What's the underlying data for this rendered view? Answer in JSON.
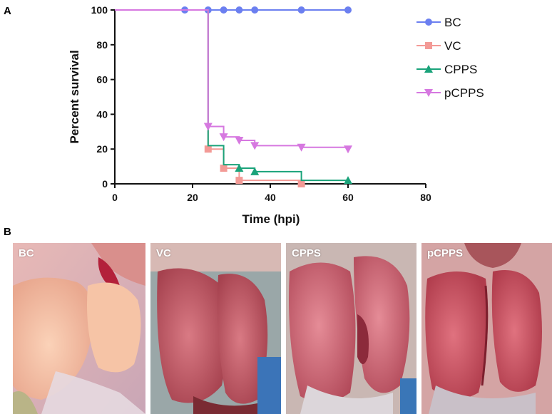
{
  "panels": {
    "a_label": "A",
    "b_label": "B"
  },
  "chart_data": {
    "type": "line",
    "style": "step",
    "xlabel": "Time (hpi)",
    "ylabel": "Percent survival",
    "xlim": [
      0,
      80
    ],
    "ylim": [
      0,
      100
    ],
    "xticks": [
      0,
      20,
      40,
      60,
      80
    ],
    "yticks": [
      0,
      20,
      40,
      60,
      80,
      100
    ],
    "legend_position": "top-right",
    "series": [
      {
        "name": "BC",
        "color": "#6b7ff0",
        "marker": "circle",
        "x": [
          0,
          60
        ],
        "y": [
          100,
          100
        ],
        "marks": [
          [
            18,
            100
          ],
          [
            24,
            100
          ],
          [
            28,
            100
          ],
          [
            32,
            100
          ],
          [
            36,
            100
          ],
          [
            48,
            100
          ],
          [
            60,
            100
          ]
        ]
      },
      {
        "name": "VC",
        "color": "#f39a96",
        "marker": "square",
        "x": [
          0,
          24,
          28,
          32,
          48
        ],
        "y": [
          100,
          20,
          9,
          2,
          0
        ],
        "marks": [
          [
            24,
            20
          ],
          [
            28,
            9
          ],
          [
            32,
            2
          ],
          [
            48,
            0
          ]
        ]
      },
      {
        "name": "CPPS",
        "color": "#1aa37a",
        "marker": "triangle-up",
        "x": [
          0,
          24,
          28,
          32,
          36,
          48,
          60
        ],
        "y": [
          100,
          22,
          11,
          9,
          7,
          2,
          2
        ],
        "marks": [
          [
            32,
            9
          ],
          [
            36,
            7
          ],
          [
            60,
            2
          ]
        ]
      },
      {
        "name": "pCPPS",
        "color": "#d678e0",
        "marker": "triangle-down",
        "x": [
          0,
          24,
          28,
          32,
          36,
          48,
          60
        ],
        "y": [
          100,
          33,
          27,
          25,
          22,
          21,
          20
        ],
        "marks": [
          [
            24,
            33
          ],
          [
            28,
            27
          ],
          [
            32,
            25
          ],
          [
            36,
            22
          ],
          [
            48,
            21
          ],
          [
            60,
            20
          ]
        ]
      }
    ]
  },
  "photos": [
    {
      "label": "BC"
    },
    {
      "label": "VC"
    },
    {
      "label": "CPPS"
    },
    {
      "label": "pCPPS"
    }
  ]
}
